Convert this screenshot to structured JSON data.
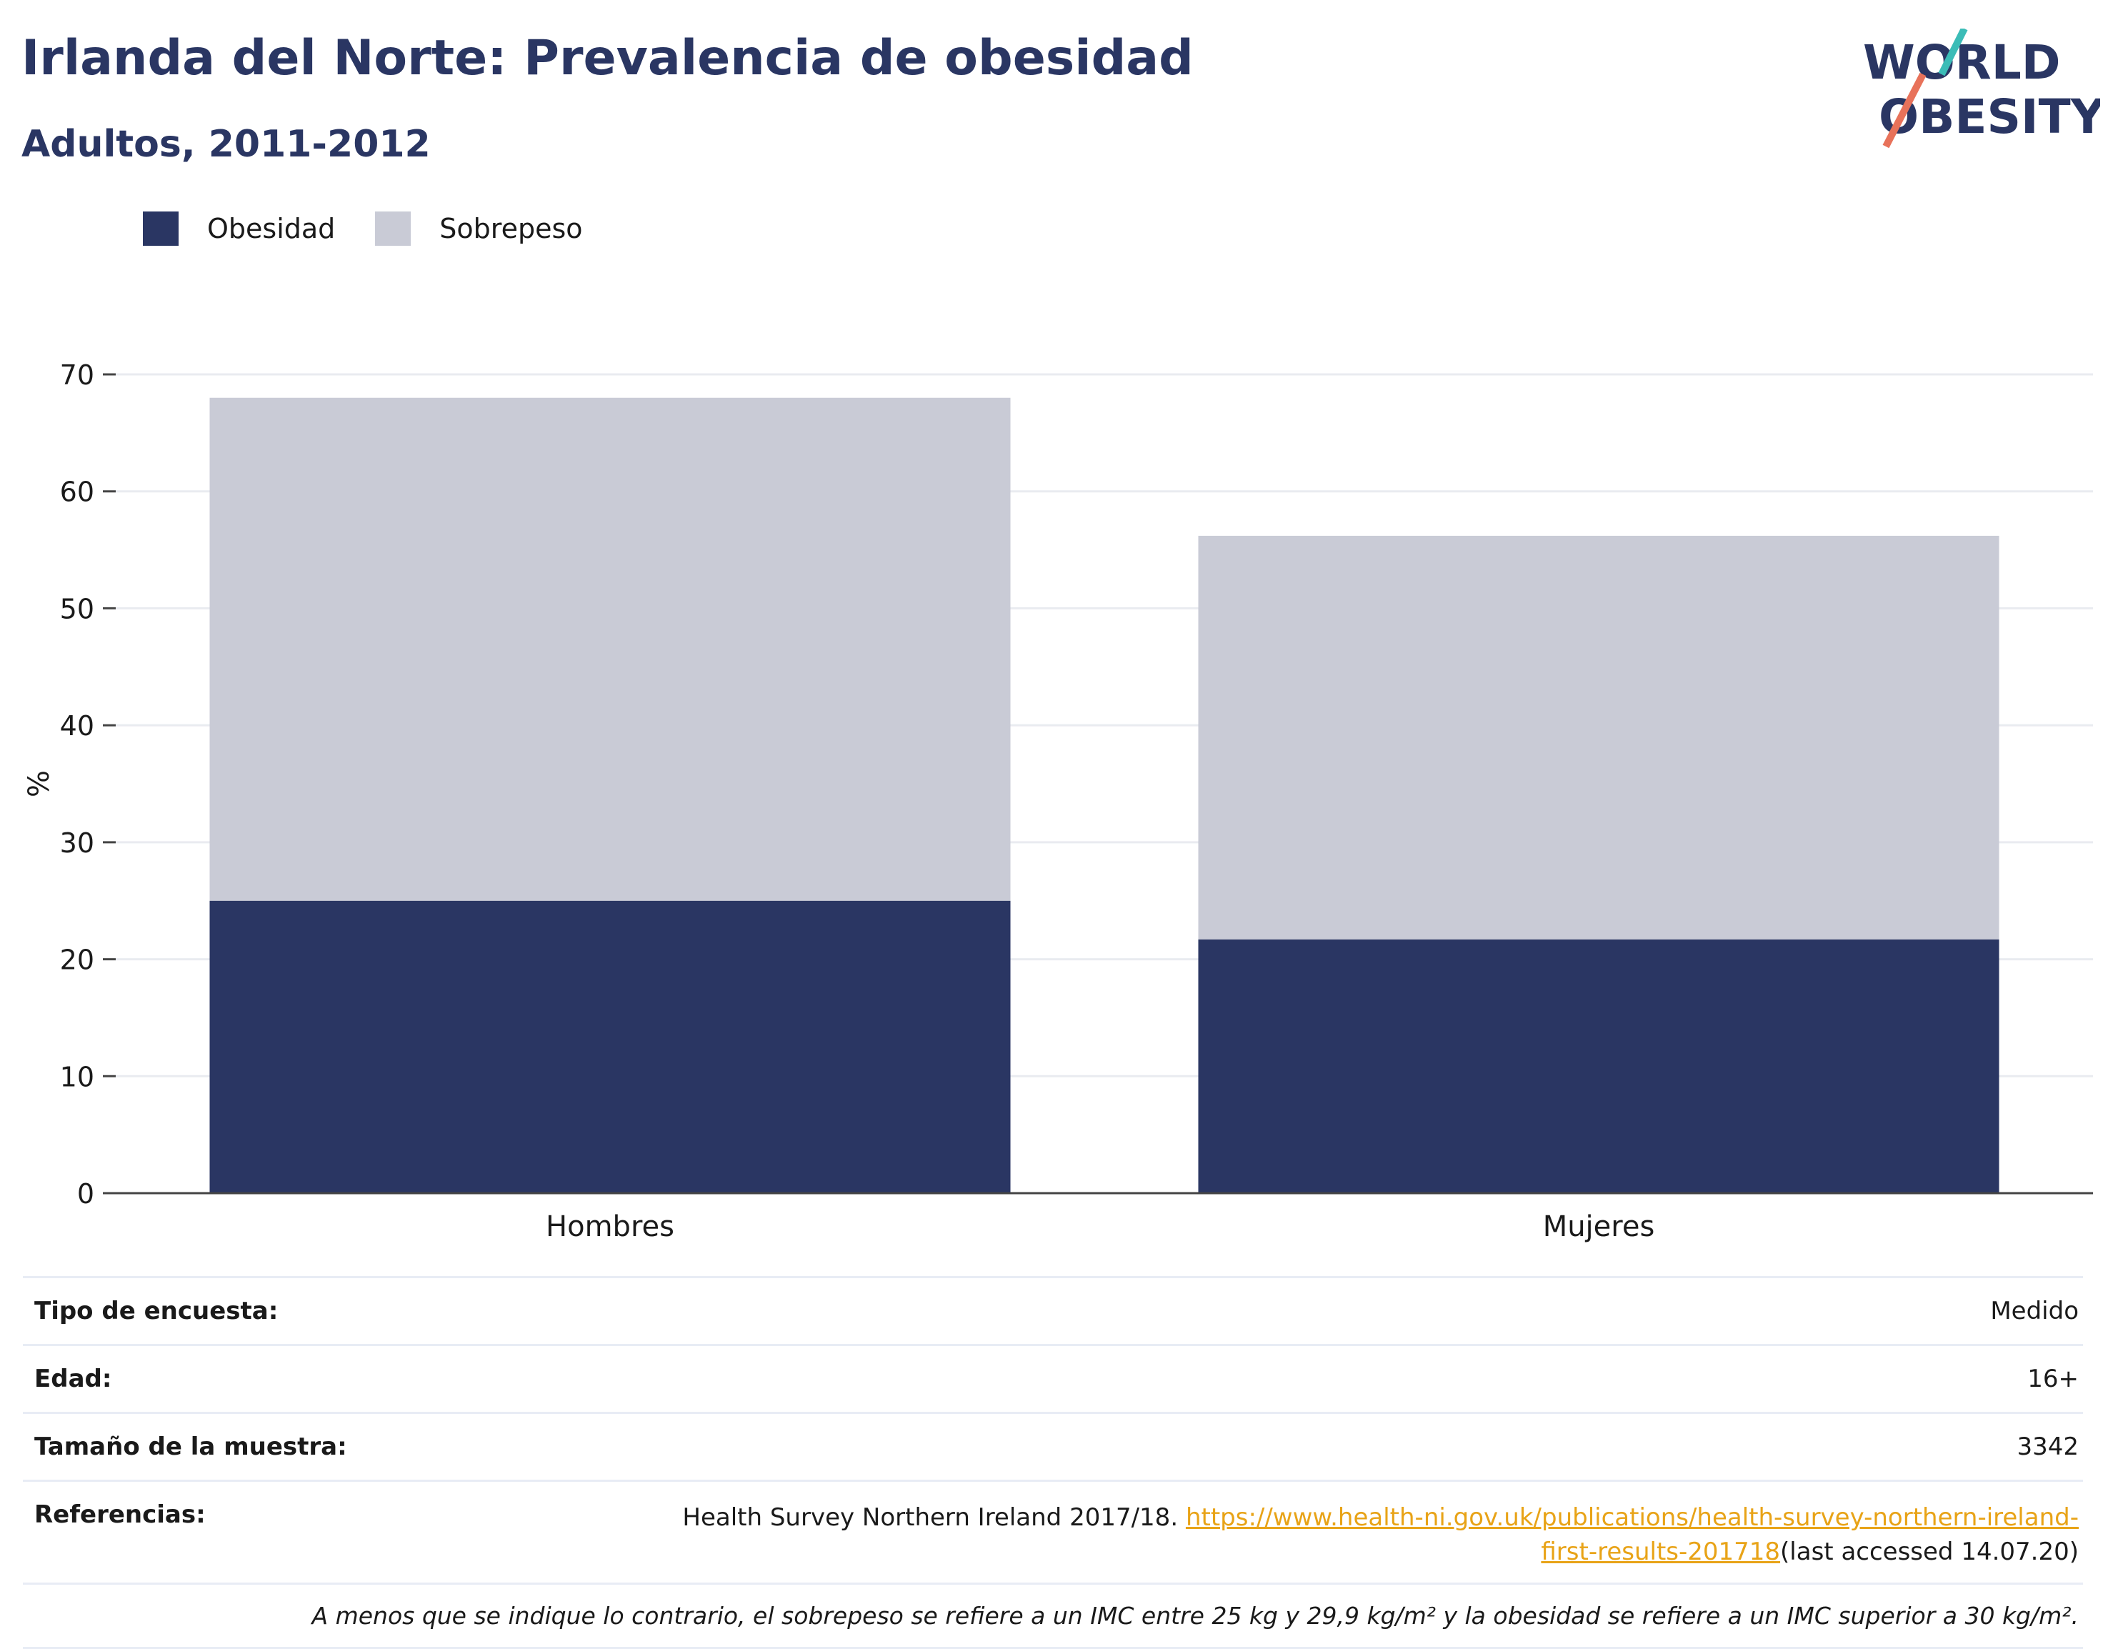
{
  "header": {
    "title": "Irlanda del Norte: Prevalencia de obesidad",
    "subtitle": "Adultos, 2011-2012"
  },
  "logo": {
    "line1": "WORLD",
    "line2": "OBESITY"
  },
  "colors": {
    "obesity": "#2a3663",
    "overweight": "#c9cbd6",
    "accent_teal": "#3bbcb7",
    "accent_coral": "#e8725a",
    "link": "#e8a317"
  },
  "chart_data": {
    "type": "bar",
    "stacked": true,
    "categories": [
      "Hombres",
      "Mujeres"
    ],
    "series": [
      {
        "name": "Obesidad",
        "values": [
          25,
          21.7
        ],
        "color": "#2a3663"
      },
      {
        "name": "Sobrepeso",
        "values": [
          43,
          34.5
        ],
        "color": "#c9cbd6"
      }
    ],
    "ylabel": "%",
    "ylim": [
      0,
      70
    ],
    "yticks": [
      0,
      10,
      20,
      30,
      40,
      50,
      60,
      70
    ],
    "grid": true,
    "legend": "top-left"
  },
  "info": {
    "survey_type": {
      "label": "Tipo de encuesta:",
      "value": "Medido"
    },
    "age": {
      "label": "Edad:",
      "value": "16+"
    },
    "sample_size": {
      "label": "Tamaño de la muestra:",
      "value": "3342"
    },
    "references": {
      "label": "Referencias:",
      "text": "Health Survey Northern Ireland 2017/18. ",
      "link": "https://www.health-ni.gov.uk/publications/health-survey-northern-ireland-first-results-201718",
      "suffix": "(last accessed 14.07.20)"
    },
    "note": "A menos que se indique lo contrario, el sobrepeso se refiere a un IMC entre 25 kg y 29,9 kg/m² y la obesidad se refiere a un IMC superior a 30 kg/m²."
  }
}
